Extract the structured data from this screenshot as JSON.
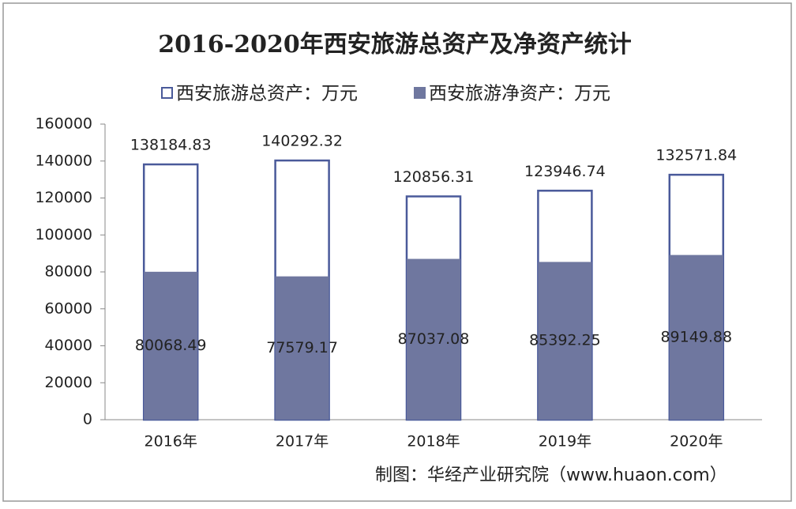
{
  "chart_data": {
    "type": "bar",
    "title": "2016-2020年西安旅游总资产及净资产统计",
    "categories": [
      "2016年",
      "2017年",
      "2018年",
      "2019年",
      "2020年"
    ],
    "series": [
      {
        "name": "西安旅游总资产：万元",
        "color": "#ffffff",
        "stroke": "#4a5a9a",
        "values": [
          138184.83,
          140292.32,
          120856.31,
          123946.74,
          132571.84
        ]
      },
      {
        "name": "西安旅游净资产：万元",
        "color": "#6f779f",
        "values": [
          80068.49,
          77579.17,
          87037.08,
          85392.25,
          89149.88
        ]
      }
    ],
    "ylim": [
      0,
      160000
    ],
    "yticks": [
      0,
      20000,
      40000,
      60000,
      80000,
      100000,
      120000,
      140000,
      160000
    ],
    "grid": false,
    "legend": "top",
    "source": "制图：华经产业研究院（www.huaon.com）"
  }
}
